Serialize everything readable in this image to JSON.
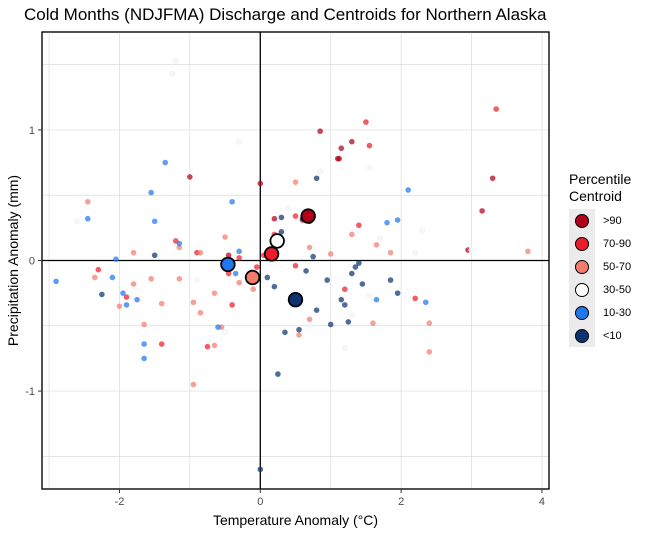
{
  "chart_data": {
    "type": "scatter",
    "title": "Cold Months (NDJFMA) Discharge and Centroids for Northern Alaska",
    "xlabel": "Temperature Anomaly (°C)",
    "ylabel": "Precipitation Anomaly (mm)",
    "xlim": [
      -3.1,
      4.1
    ],
    "ylim": [
      -1.75,
      1.75
    ],
    "xticks": [
      -2,
      0,
      2,
      4
    ],
    "yticks": [
      -1,
      0,
      1
    ],
    "xtick_labels": [
      "-2",
      "0",
      "2",
      "4"
    ],
    "ytick_labels": [
      "-1",
      "0",
      "1"
    ],
    "grid": true,
    "zero_lines": true,
    "legend": {
      "title_line1": "Percentile",
      "title_line2": "Centroid",
      "placement": "right",
      "items": [
        {
          "label": ">90",
          "color": "#b2001a"
        },
        {
          "label": "70-90",
          "color": "#ee1c2a"
        },
        {
          "label": "50-70",
          "color": "#f37d6d"
        },
        {
          "label": "30-50",
          "color": "#ffffff"
        },
        {
          "label": "10-30",
          "color": "#1f78f0"
        },
        {
          "label": "<10",
          "color": "#0d3371"
        }
      ]
    },
    "centroids": [
      {
        "group": ">90",
        "x": 0.68,
        "y": 0.34
      },
      {
        "group": "70-90",
        "x": 0.16,
        "y": 0.05
      },
      {
        "group": "50-70",
        "x": -0.11,
        "y": -0.13
      },
      {
        "group": "30-50",
        "x": 0.24,
        "y": 0.15
      },
      {
        "group": "10-30",
        "x": -0.46,
        "y": -0.03
      },
      {
        "group": "<10",
        "x": 0.5,
        "y": -0.3
      }
    ],
    "series": [
      {
        "group": ">90",
        "points": [
          [
            0.85,
            0.99
          ],
          [
            1.1,
            0.78
          ],
          [
            1.15,
            0.86
          ],
          [
            1.12,
            0.78
          ],
          [
            1.3,
            0.91
          ],
          [
            3.3,
            0.63
          ],
          [
            3.15,
            0.38
          ],
          [
            0.0,
            0.59
          ],
          [
            -1.0,
            0.64
          ],
          [
            -0.45,
            0.04
          ],
          [
            2.95,
            0.08
          ],
          [
            0.7,
            0.3
          ],
          [
            0.2,
            0.32
          ]
        ]
      },
      {
        "group": "70-90",
        "points": [
          [
            1.5,
            1.06
          ],
          [
            3.35,
            1.16
          ],
          [
            1.55,
            0.88
          ],
          [
            1.4,
            0.27
          ],
          [
            0.5,
            0.34
          ],
          [
            0.6,
            0.31
          ],
          [
            0.2,
            0.2
          ],
          [
            0.05,
            0.04
          ],
          [
            -0.05,
            -0.05
          ],
          [
            -0.3,
            0.02
          ],
          [
            -0.75,
            -0.66
          ],
          [
            -1.2,
            0.15
          ],
          [
            -2.3,
            -0.07
          ],
          [
            -1.4,
            -0.64
          ],
          [
            -1.9,
            -0.28
          ],
          [
            -0.9,
            0.06
          ],
          [
            -0.45,
            -0.1
          ],
          [
            -0.4,
            -0.34
          ],
          [
            2.2,
            -0.29
          ],
          [
            1.2,
            -0.22
          ],
          [
            0.5,
            -0.04
          ]
        ]
      },
      {
        "group": "50-70",
        "points": [
          [
            -2.45,
            0.45
          ],
          [
            -1.8,
            0.06
          ],
          [
            -1.15,
            0.1
          ],
          [
            -0.85,
            0.06
          ],
          [
            -0.5,
            0.18
          ],
          [
            -0.65,
            -0.25
          ],
          [
            -0.55,
            -0.51
          ],
          [
            -0.95,
            -0.95
          ],
          [
            -1.55,
            -0.14
          ],
          [
            -1.4,
            -0.33
          ],
          [
            -1.15,
            -0.14
          ],
          [
            -1.65,
            -0.49
          ],
          [
            -2.0,
            -0.35
          ],
          [
            -1.8,
            -0.18
          ],
          [
            -2.35,
            -0.13
          ],
          [
            0.2,
            0.05
          ],
          [
            0.5,
            0.6
          ],
          [
            0.7,
            0.1
          ],
          [
            1.0,
            0.05
          ],
          [
            1.3,
            0.2
          ],
          [
            1.65,
            0.12
          ],
          [
            1.85,
            0.06
          ],
          [
            2.4,
            -0.7
          ],
          [
            2.4,
            -0.48
          ],
          [
            1.6,
            -0.48
          ],
          [
            3.8,
            0.07
          ],
          [
            0.7,
            -0.45
          ],
          [
            0.55,
            -0.57
          ],
          [
            -0.3,
            -0.17
          ],
          [
            -0.85,
            -0.4
          ],
          [
            -0.1,
            -0.22
          ],
          [
            -0.95,
            -0.32
          ],
          [
            -0.65,
            -0.65
          ]
        ]
      },
      {
        "group": "30-50",
        "points": [
          [
            -1.2,
            1.53
          ],
          [
            -1.25,
            1.43
          ],
          [
            -0.3,
            0.91
          ],
          [
            1.55,
            0.71
          ],
          [
            1.7,
            0.17
          ],
          [
            2.3,
            0.23
          ],
          [
            2.2,
            0.06
          ],
          [
            1.55,
            -0.27
          ],
          [
            1.3,
            -0.42
          ],
          [
            1.2,
            -0.67
          ],
          [
            0.7,
            -0.5
          ],
          [
            -0.5,
            -0.55
          ],
          [
            -0.9,
            -0.15
          ],
          [
            3.0,
            0.08
          ],
          [
            0.4,
            0.4
          ],
          [
            0.85,
            0.68
          ],
          [
            -2.6,
            0.3
          ]
        ]
      },
      {
        "group": "10-30",
        "points": [
          [
            -2.9,
            -0.16
          ],
          [
            -2.45,
            0.32
          ],
          [
            -2.1,
            -0.13
          ],
          [
            -2.05,
            0.01
          ],
          [
            -1.95,
            -0.25
          ],
          [
            -1.9,
            -0.34
          ],
          [
            -1.75,
            -0.3
          ],
          [
            -1.65,
            -0.64
          ],
          [
            -1.65,
            -0.75
          ],
          [
            -1.55,
            0.52
          ],
          [
            -1.5,
            0.3
          ],
          [
            -1.35,
            0.75
          ],
          [
            -1.15,
            0.13
          ],
          [
            -0.6,
            -0.51
          ],
          [
            -0.4,
            0.45
          ],
          [
            -0.3,
            0.07
          ],
          [
            -0.35,
            -0.1
          ],
          [
            1.65,
            -0.3
          ],
          [
            1.8,
            0.29
          ],
          [
            1.95,
            0.31
          ],
          [
            2.1,
            0.54
          ],
          [
            2.35,
            -0.32
          ]
        ]
      },
      {
        "group": "<10",
        "points": [
          [
            -2.25,
            -0.26
          ],
          [
            -1.5,
            0.04
          ],
          [
            0.0,
            -1.6
          ],
          [
            0.25,
            -0.87
          ],
          [
            0.35,
            -0.55
          ],
          [
            0.55,
            -0.53
          ],
          [
            0.6,
            0.32
          ],
          [
            0.65,
            -0.08
          ],
          [
            0.75,
            0.03
          ],
          [
            0.8,
            -0.38
          ],
          [
            0.95,
            -0.15
          ],
          [
            1.0,
            -0.49
          ],
          [
            1.15,
            -0.3
          ],
          [
            1.2,
            -0.34
          ],
          [
            1.25,
            -0.47
          ],
          [
            1.3,
            -0.1
          ],
          [
            1.35,
            -0.05
          ],
          [
            1.4,
            -0.02
          ],
          [
            1.45,
            -0.18
          ],
          [
            1.85,
            -0.15
          ],
          [
            1.95,
            -0.25
          ],
          [
            0.8,
            0.63
          ],
          [
            0.3,
            0.33
          ],
          [
            0.2,
            -0.2
          ],
          [
            0.1,
            -0.13
          ],
          [
            0.3,
            0.22
          ]
        ]
      }
    ]
  }
}
